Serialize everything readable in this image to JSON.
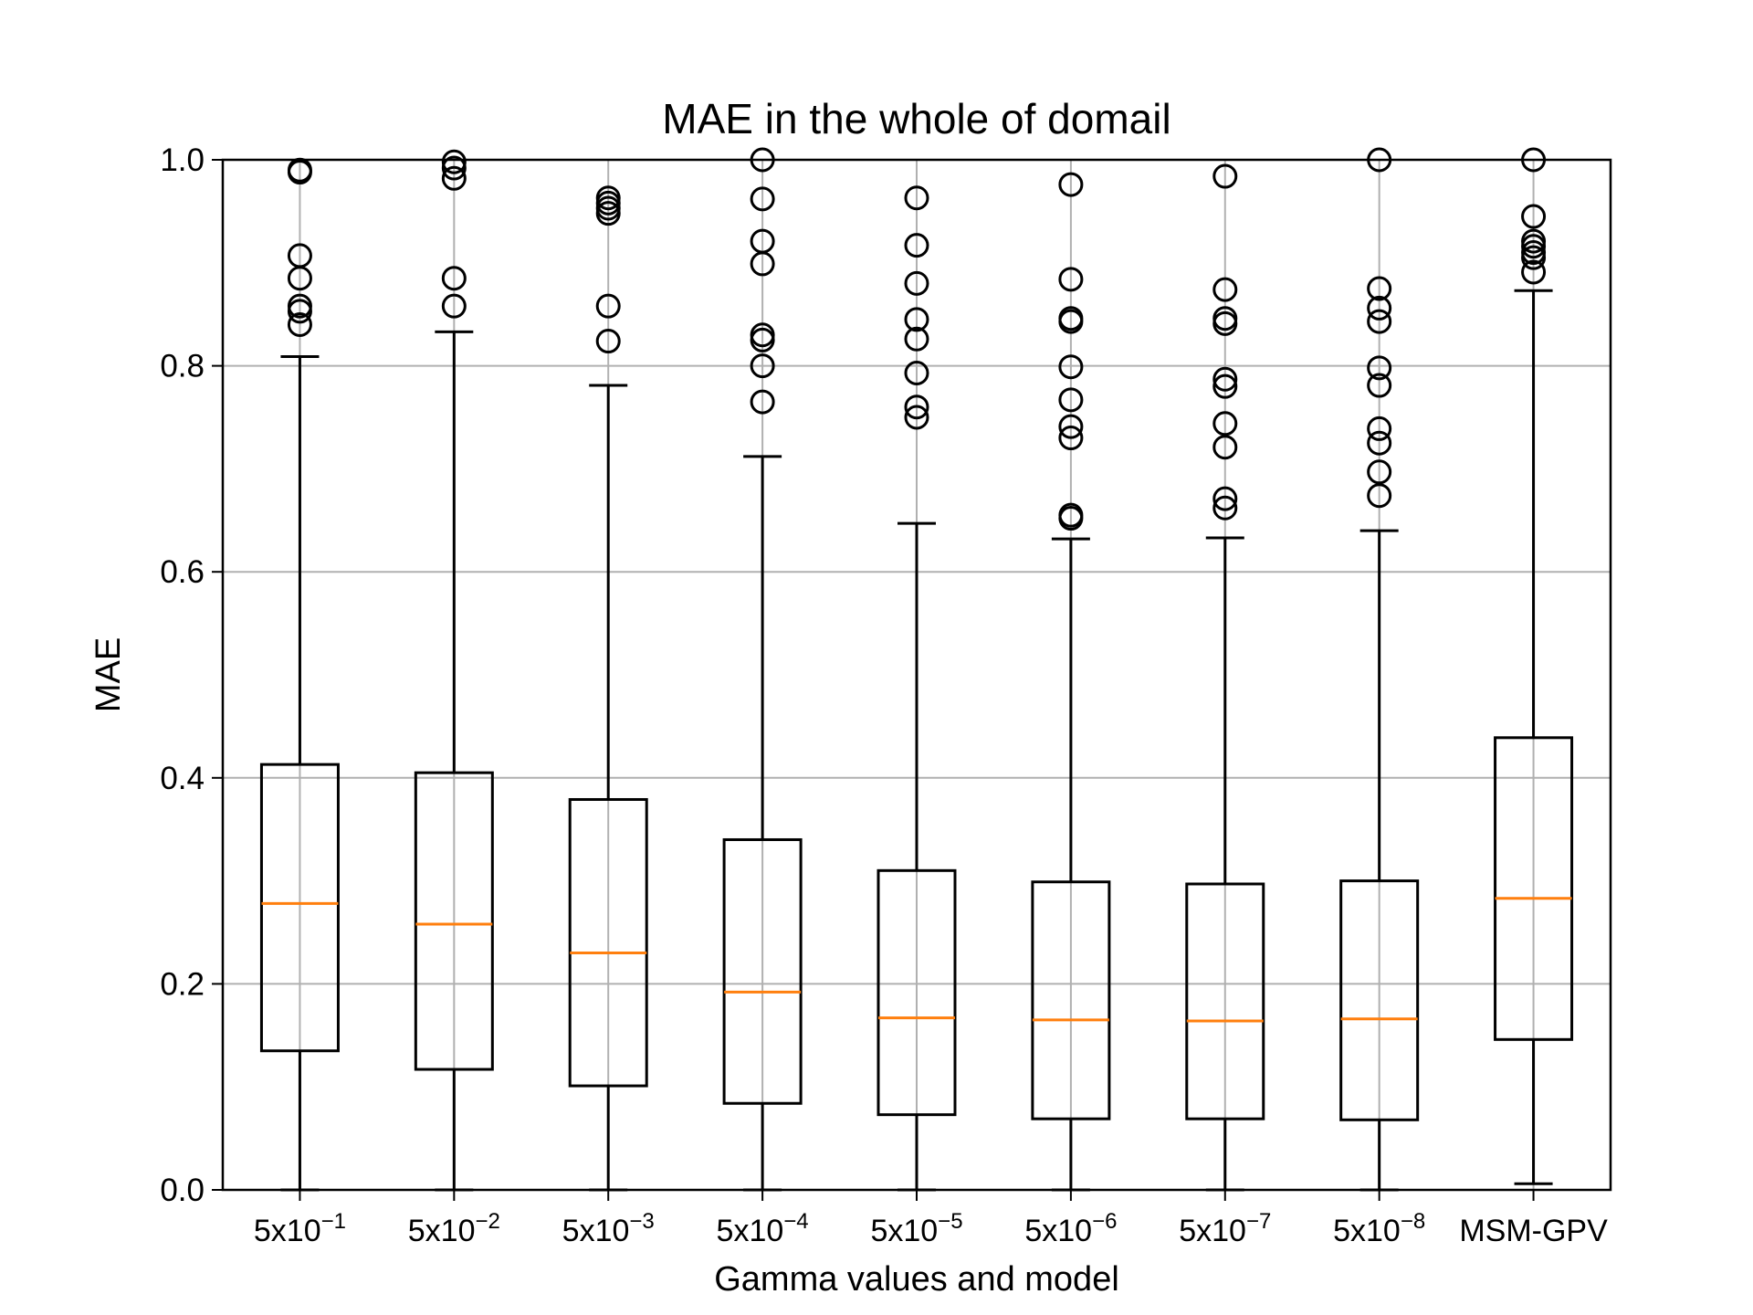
{
  "chart_data": {
    "type": "boxplot",
    "title": "MAE in the whole of domail",
    "xlabel": "Gamma values and model",
    "ylabel": "MAE",
    "ylim": [
      0,
      1.0
    ],
    "yticks": [
      "0.0",
      "0.2",
      "0.4",
      "0.6",
      "0.8",
      "1.0"
    ],
    "grid": true,
    "colors": {
      "box": "#000000",
      "median": "#ff7f0e",
      "grid": "#b0b0b0"
    },
    "categories": [
      {
        "base": "5x10",
        "exp": "−1"
      },
      {
        "base": "5x10",
        "exp": "−2"
      },
      {
        "base": "5x10",
        "exp": "−3"
      },
      {
        "base": "5x10",
        "exp": "−4"
      },
      {
        "base": "5x10",
        "exp": "−5"
      },
      {
        "base": "5x10",
        "exp": "−6"
      },
      {
        "base": "5x10",
        "exp": "−7"
      },
      {
        "base": "5x10",
        "exp": "−8"
      },
      {
        "base": "MSM-GPV",
        "exp": ""
      }
    ],
    "boxes": [
      {
        "whislo": 0.0,
        "q1": 0.135,
        "med": 0.278,
        "q3": 0.413,
        "whishi": 0.809,
        "fliers": [
          0.84,
          0.853,
          0.858,
          0.885,
          0.907,
          0.988,
          0.99
        ]
      },
      {
        "whislo": 0.0,
        "q1": 0.117,
        "med": 0.258,
        "q3": 0.405,
        "whishi": 0.833,
        "fliers": [
          0.858,
          0.885,
          0.982,
          0.992,
          0.998
        ]
      },
      {
        "whislo": 0.0,
        "q1": 0.101,
        "med": 0.23,
        "q3": 0.379,
        "whishi": 0.781,
        "fliers": [
          0.824,
          0.858,
          0.948,
          0.953,
          0.958,
          0.963
        ]
      },
      {
        "whislo": 0.0,
        "q1": 0.084,
        "med": 0.192,
        "q3": 0.34,
        "whishi": 0.712,
        "fliers": [
          0.765,
          0.8,
          0.825,
          0.83,
          0.899,
          0.921,
          0.962,
          1.0
        ]
      },
      {
        "whislo": 0.0,
        "q1": 0.073,
        "med": 0.167,
        "q3": 0.31,
        "whishi": 0.647,
        "fliers": [
          0.75,
          0.76,
          0.793,
          0.826,
          0.845,
          0.88,
          0.917,
          0.963
        ]
      },
      {
        "whislo": 0.0,
        "q1": 0.069,
        "med": 0.165,
        "q3": 0.299,
        "whishi": 0.632,
        "fliers": [
          0.652,
          0.655,
          0.73,
          0.741,
          0.767,
          0.799,
          0.843,
          0.846,
          0.884,
          0.976
        ]
      },
      {
        "whislo": 0.0,
        "q1": 0.069,
        "med": 0.164,
        "q3": 0.297,
        "whishi": 0.633,
        "fliers": [
          0.662,
          0.671,
          0.721,
          0.744,
          0.78,
          0.787,
          0.841,
          0.846,
          0.874,
          0.984
        ]
      },
      {
        "whislo": 0.0,
        "q1": 0.068,
        "med": 0.166,
        "q3": 0.3,
        "whishi": 0.64,
        "fliers": [
          0.674,
          0.697,
          0.725,
          0.739,
          0.781,
          0.798,
          0.843,
          0.856,
          0.875,
          1.0
        ]
      },
      {
        "whislo": 0.006,
        "q1": 0.146,
        "med": 0.283,
        "q3": 0.439,
        "whishi": 0.873,
        "fliers": [
          0.891,
          0.905,
          0.91,
          0.916,
          0.921,
          0.945,
          1.0
        ]
      }
    ]
  }
}
